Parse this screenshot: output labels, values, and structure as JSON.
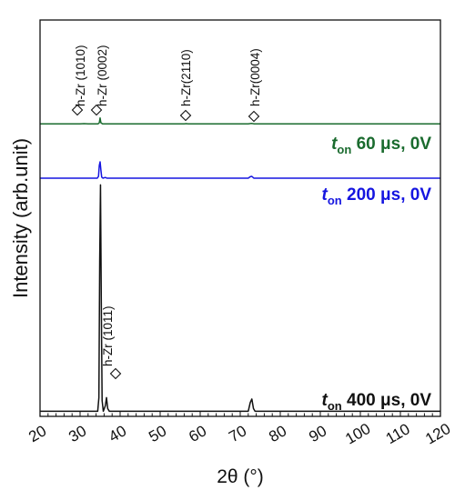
{
  "chart_data": {
    "type": "line",
    "xlabel": "2θ (°)",
    "ylabel": "Intensity (arb.unit)",
    "xlim": [
      20,
      120
    ],
    "xticks": [
      "20",
      "30",
      "40",
      "50",
      "60",
      "70",
      "80",
      "90",
      "100",
      "110",
      "120"
    ],
    "series": [
      {
        "name": "t_on 60 μs, 0V",
        "label_t": "t",
        "label_sub": "on",
        "label_rest": " 60 μs, 0V",
        "color": "#1a6b2e",
        "baseline": 0.7,
        "points": [
          [
            20,
            0
          ],
          [
            30.0,
            0
          ],
          [
            31.0,
            0.06
          ],
          [
            32.0,
            0
          ],
          [
            34.5,
            0
          ],
          [
            34.8,
            0.3
          ],
          [
            35.0,
            1.6
          ],
          [
            35.2,
            0.3
          ],
          [
            35.6,
            0
          ],
          [
            56.0,
            0
          ],
          [
            56.5,
            0.05
          ],
          [
            57.0,
            0
          ],
          [
            72.0,
            0
          ],
          [
            72.8,
            0.1
          ],
          [
            73.5,
            0
          ],
          [
            120,
            0
          ]
        ]
      },
      {
        "name": "t_on 200 μs, 0V",
        "label_t": "t",
        "label_sub": "on",
        "label_rest": " 200 μs, 0V",
        "color": "#1515e0",
        "baseline": 0.5,
        "points": [
          [
            20,
            0
          ],
          [
            34.3,
            0
          ],
          [
            34.6,
            1.0
          ],
          [
            34.8,
            7.0
          ],
          [
            35.0,
            9.0
          ],
          [
            35.2,
            4.5
          ],
          [
            35.4,
            0.6
          ],
          [
            35.7,
            0
          ],
          [
            36.3,
            0.4
          ],
          [
            36.7,
            0
          ],
          [
            72.0,
            0
          ],
          [
            72.5,
            0.8
          ],
          [
            72.9,
            1.0
          ],
          [
            73.4,
            0
          ],
          [
            120,
            0
          ]
        ]
      },
      {
        "name": "t_on 400 μs, 0V",
        "label_t": "t",
        "label_sub": "on",
        "label_rest": " 400 μs, 0V",
        "color": "#111111",
        "baseline": 0.2,
        "points": [
          [
            20,
            0
          ],
          [
            34.4,
            0
          ],
          [
            34.7,
            5
          ],
          [
            34.9,
            55
          ],
          [
            35.1,
            83
          ],
          [
            35.3,
            40
          ],
          [
            35.5,
            4
          ],
          [
            35.8,
            0
          ],
          [
            36.3,
            2
          ],
          [
            36.6,
            5
          ],
          [
            36.9,
            1
          ],
          [
            37.3,
            0
          ],
          [
            72.0,
            0
          ],
          [
            72.5,
            3.2
          ],
          [
            72.9,
            4.5
          ],
          [
            73.3,
            1.0
          ],
          [
            73.7,
            0
          ],
          [
            120,
            0
          ]
        ]
      }
    ],
    "annotations": [
      {
        "text": "h-Zr (1010)",
        "x": 31.0,
        "marker": "diamond"
      },
      {
        "text": "h-Zr (0002)",
        "x": 35.0,
        "marker": "diamond"
      },
      {
        "text": "h-Zr(2110)",
        "x": 57.0,
        "marker": "diamond"
      },
      {
        "text": "h-Zr(0004)",
        "x": 73.0,
        "marker": "diamond"
      },
      {
        "text": "h-Zr (1011)",
        "x": 37.0,
        "marker": "diamond"
      }
    ]
  }
}
